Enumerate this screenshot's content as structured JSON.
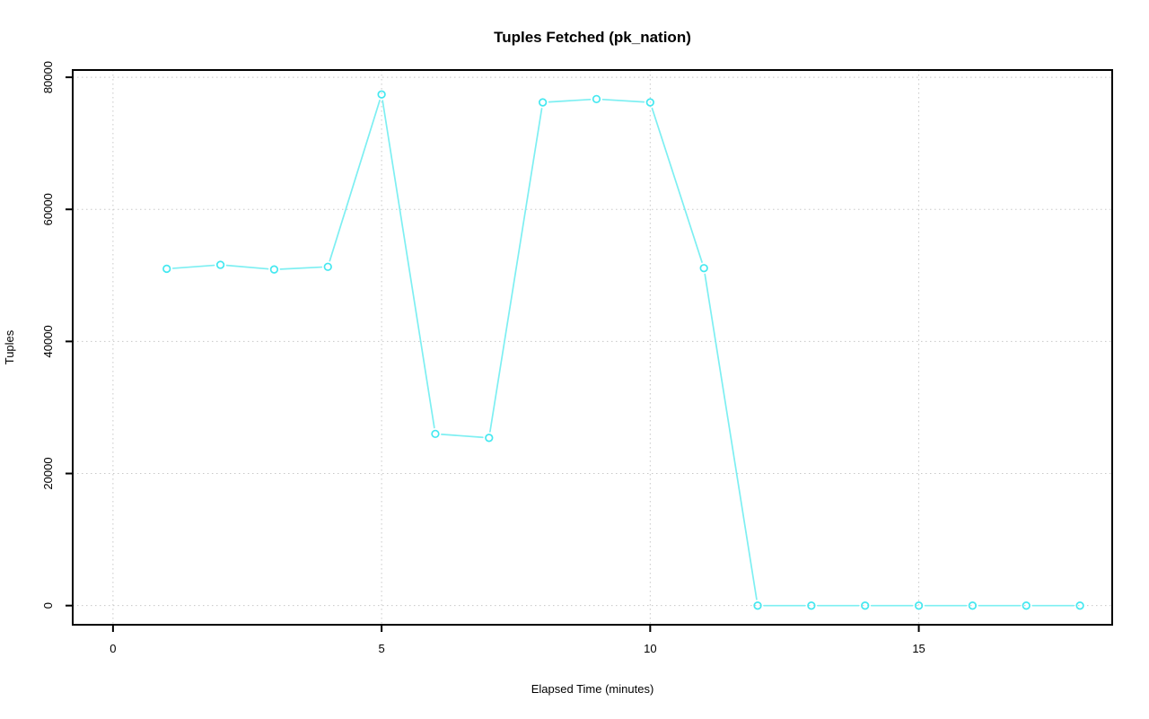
{
  "figure": {
    "background": "#ffffff"
  },
  "chart_data": {
    "type": "line",
    "title": "Tuples Fetched (pk_nation)",
    "xlabel": "Elapsed Time (minutes)",
    "ylabel": "Tuples",
    "series": [
      {
        "name": "tuples-fetched",
        "x": [
          1,
          2,
          3,
          4,
          5,
          6,
          7,
          8,
          9,
          10,
          11,
          12,
          13,
          14,
          15,
          16,
          17,
          18
        ],
        "y": [
          51000,
          51600,
          50900,
          51300,
          77400,
          26000,
          25400,
          76200,
          76700,
          76200,
          51100,
          0,
          0,
          0,
          0,
          0,
          0,
          0
        ]
      }
    ],
    "x_ticks": [
      0,
      5,
      10,
      15
    ],
    "y_ticks": [
      0,
      20000,
      40000,
      60000,
      80000
    ],
    "xlim": [
      -0.75,
      18.6
    ],
    "ylim": [
      -2900,
      81100
    ],
    "grid": true,
    "grid_style": "dotted",
    "legend": "none",
    "marker": "open-circle",
    "line_color": "#7deff2",
    "point_color": "#45e8f0",
    "grid_color": "#c8c8c8",
    "axis_color": "#000000",
    "text_color": "#000000"
  }
}
